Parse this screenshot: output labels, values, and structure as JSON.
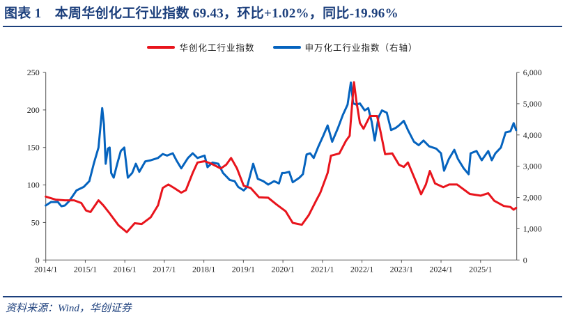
{
  "header": {
    "title": "图表 1　本周华创化工行业指数 69.43，环比+1.02%，同比-19.96%"
  },
  "footer": {
    "source": "资料来源：Wind，华创证券"
  },
  "colors": {
    "brand": "#1c3f7c",
    "red_series": "#e8141c",
    "blue_series": "#0563be"
  },
  "chart_data": {
    "type": "line",
    "title": "",
    "legend_position": "top",
    "grid": false,
    "xlim": [
      "2014-01-01",
      "2025-12-01"
    ],
    "x_ticks": [
      "2014/1",
      "2015/1",
      "2016/1",
      "2017/1",
      "2018/1",
      "2019/1",
      "2020/1",
      "2021/1",
      "2022/1",
      "2023/1",
      "2024/1",
      "2025/1"
    ],
    "y_left": {
      "lim": [
        0,
        250
      ],
      "ticks": [
        "0",
        "50",
        "100",
        "150",
        "200",
        "250"
      ]
    },
    "y_right": {
      "lim": [
        0,
        6000
      ],
      "ticks": [
        "0",
        "1,000",
        "2,000",
        "3,000",
        "4,000",
        "5,000",
        "6,000"
      ]
    },
    "series": [
      {
        "name": "华创化工行业指数",
        "axis": "left",
        "color": "#e8141c",
        "points": [
          [
            "2014-01-01",
            84.5
          ],
          [
            "2014-04-01",
            80.5
          ],
          [
            "2014-06-27",
            79.6
          ],
          [
            "2014-09-20",
            79.6
          ],
          [
            "2014-11-25",
            75.9
          ],
          [
            "2015-01-08",
            66
          ],
          [
            "2015-02-18",
            64
          ],
          [
            "2015-05-03",
            79.6
          ],
          [
            "2015-06-17",
            72.8
          ],
          [
            "2015-08-07",
            63.5
          ],
          [
            "2015-11-03",
            46.4
          ],
          [
            "2016-01-19",
            37
          ],
          [
            "2016-04-01",
            49
          ],
          [
            "2016-06-06",
            48
          ],
          [
            "2016-08-28",
            57
          ],
          [
            "2016-11-03",
            72.8
          ],
          [
            "2016-12-17",
            96
          ],
          [
            "2017-02-07",
            100.6
          ],
          [
            "2017-04-01",
            96
          ],
          [
            "2017-06-06",
            89.8
          ],
          [
            "2017-07-19",
            93
          ],
          [
            "2017-09-20",
            116
          ],
          [
            "2017-11-03",
            130
          ],
          [
            "2018-01-08",
            131.6
          ],
          [
            "2018-03-09",
            128.5
          ],
          [
            "2018-06-06",
            122
          ],
          [
            "2018-07-26",
            127
          ],
          [
            "2018-09-09",
            136
          ],
          [
            "2018-11-03",
            122
          ],
          [
            "2019-01-04",
            99
          ],
          [
            "2019-03-09",
            96
          ],
          [
            "2019-05-25",
            83.6
          ],
          [
            "2019-08-18",
            83
          ],
          [
            "2019-11-03",
            74
          ],
          [
            "2020-01-26",
            65
          ],
          [
            "2020-04-01",
            49.5
          ],
          [
            "2020-06-24",
            47
          ],
          [
            "2020-08-28",
            60
          ],
          [
            "2020-11-03",
            79
          ],
          [
            "2020-12-13",
            90
          ],
          [
            "2021-02-18",
            116
          ],
          [
            "2021-03-20",
            139
          ],
          [
            "2021-06-06",
            142
          ],
          [
            "2021-08-07",
            159
          ],
          [
            "2021-09-09",
            165.6
          ],
          [
            "2021-10-01",
            206
          ],
          [
            "2021-10-19",
            237
          ],
          [
            "2021-11-10",
            212
          ],
          [
            "2021-12-13",
            182.7
          ],
          [
            "2022-01-15",
            175
          ],
          [
            "2022-03-16",
            192
          ],
          [
            "2022-05-21",
            192
          ],
          [
            "2022-06-20",
            172
          ],
          [
            "2022-08-03",
            141
          ],
          [
            "2022-10-08",
            142
          ],
          [
            "2022-12-09",
            127
          ],
          [
            "2023-01-22",
            124
          ],
          [
            "2023-03-02",
            130
          ],
          [
            "2023-05-07",
            107
          ],
          [
            "2023-07-01",
            87.6
          ],
          [
            "2023-08-14",
            100.6
          ],
          [
            "2023-09-20",
            118.6
          ],
          [
            "2023-11-07",
            102
          ],
          [
            "2024-01-22",
            97
          ],
          [
            "2024-03-16",
            100.6
          ],
          [
            "2024-05-29",
            100.6
          ],
          [
            "2024-09-24",
            88
          ],
          [
            "2025-01-01",
            85.8
          ],
          [
            "2025-03-13",
            89
          ],
          [
            "2025-05-07",
            79
          ],
          [
            "2025-08-03",
            72
          ],
          [
            "2025-10-04",
            70.6
          ],
          [
            "2025-11-03",
            67
          ],
          [
            "2025-11-25",
            69.43
          ]
        ]
      },
      {
        "name": "申万化工行业指数（右轴）",
        "axis": "right",
        "color": "#0563be",
        "points": [
          [
            "2014-01-01",
            1744
          ],
          [
            "2014-02-19",
            1855
          ],
          [
            "2014-04-22",
            1855
          ],
          [
            "2014-05-25",
            1721
          ],
          [
            "2014-06-27",
            1744
          ],
          [
            "2014-08-07",
            1892
          ],
          [
            "2014-10-12",
            2226
          ],
          [
            "2014-12-17",
            2337
          ],
          [
            "2015-02-07",
            2523
          ],
          [
            "2015-03-20",
            3079
          ],
          [
            "2015-05-03",
            3599
          ],
          [
            "2015-06-06",
            4860
          ],
          [
            "2015-06-22",
            4341
          ],
          [
            "2015-07-08",
            3079
          ],
          [
            "2015-07-28",
            3562
          ],
          [
            "2015-08-14",
            3599
          ],
          [
            "2015-08-28",
            2783
          ],
          [
            "2015-09-20",
            2634
          ],
          [
            "2015-10-23",
            3079
          ],
          [
            "2015-11-25",
            3487
          ],
          [
            "2015-12-27",
            3599
          ],
          [
            "2016-01-29",
            2634
          ],
          [
            "2016-03-09",
            2783
          ],
          [
            "2016-04-12",
            3079
          ],
          [
            "2016-05-14",
            2820
          ],
          [
            "2016-07-08",
            3154
          ],
          [
            "2016-08-28",
            3191
          ],
          [
            "2016-11-03",
            3265
          ],
          [
            "2016-12-17",
            3391
          ],
          [
            "2017-01-26",
            3339
          ],
          [
            "2017-03-20",
            3413
          ],
          [
            "2017-04-22",
            3191
          ],
          [
            "2017-06-06",
            2931
          ],
          [
            "2017-08-07",
            3265
          ],
          [
            "2017-09-20",
            3413
          ],
          [
            "2017-11-03",
            3265
          ],
          [
            "2018-01-08",
            3339
          ],
          [
            "2018-02-04",
            2968
          ],
          [
            "2018-03-20",
            3116
          ],
          [
            "2018-05-14",
            3079
          ],
          [
            "2018-06-27",
            2783
          ],
          [
            "2018-08-28",
            2560
          ],
          [
            "2018-10-12",
            2523
          ],
          [
            "2018-11-14",
            2337
          ],
          [
            "2019-01-04",
            2226
          ],
          [
            "2019-02-04",
            2337
          ],
          [
            "2019-04-01",
            3079
          ],
          [
            "2019-05-14",
            2597
          ],
          [
            "2019-07-04",
            2523
          ],
          [
            "2019-08-18",
            2412
          ],
          [
            "2019-10-12",
            2523
          ],
          [
            "2019-11-25",
            2449
          ],
          [
            "2019-12-24",
            2783
          ],
          [
            "2020-01-15",
            2783
          ],
          [
            "2020-02-28",
            2820
          ],
          [
            "2020-04-01",
            2486
          ],
          [
            "2020-06-02",
            2634
          ],
          [
            "2020-07-04",
            2745
          ],
          [
            "2020-08-07",
            3376
          ],
          [
            "2020-09-09",
            3413
          ],
          [
            "2020-10-12",
            3265
          ],
          [
            "2020-11-25",
            3636
          ],
          [
            "2021-01-08",
            3970
          ],
          [
            "2021-02-18",
            4304
          ],
          [
            "2021-04-01",
            3784
          ],
          [
            "2021-05-25",
            4229
          ],
          [
            "2021-07-08",
            4638
          ],
          [
            "2021-08-21",
            4971
          ],
          [
            "2021-09-20",
            5676
          ],
          [
            "2021-10-12",
            5009
          ],
          [
            "2021-11-10",
            4971
          ],
          [
            "2021-12-13",
            5009
          ],
          [
            "2022-01-26",
            4786
          ],
          [
            "2022-02-28",
            4860
          ],
          [
            "2022-04-01",
            4415
          ],
          [
            "2022-04-29",
            3821
          ],
          [
            "2022-06-02",
            4563
          ],
          [
            "2022-07-04",
            4786
          ],
          [
            "2022-08-18",
            4712
          ],
          [
            "2022-09-27",
            4155
          ],
          [
            "2022-11-10",
            4229
          ],
          [
            "2022-12-09",
            4304
          ],
          [
            "2023-01-22",
            4452
          ],
          [
            "2023-03-02",
            4155
          ],
          [
            "2023-04-26",
            3784
          ],
          [
            "2023-06-09",
            3673
          ],
          [
            "2023-07-23",
            3821
          ],
          [
            "2023-09-13",
            3636
          ],
          [
            "2023-11-18",
            3562
          ],
          [
            "2024-01-01",
            3413
          ],
          [
            "2024-01-29",
            2857
          ],
          [
            "2024-03-13",
            3228
          ],
          [
            "2024-05-03",
            3525
          ],
          [
            "2024-06-06",
            3228
          ],
          [
            "2024-07-29",
            2931
          ],
          [
            "2024-09-13",
            2745
          ],
          [
            "2024-10-01",
            3413
          ],
          [
            "2024-11-25",
            3487
          ],
          [
            "2025-01-12",
            3191
          ],
          [
            "2025-03-13",
            3487
          ],
          [
            "2025-04-15",
            3191
          ],
          [
            "2025-05-18",
            3413
          ],
          [
            "2025-07-08",
            3599
          ],
          [
            "2025-08-21",
            4081
          ],
          [
            "2025-10-04",
            4118
          ],
          [
            "2025-11-03",
            4378
          ],
          [
            "2025-11-25",
            4155
          ]
        ]
      }
    ]
  }
}
